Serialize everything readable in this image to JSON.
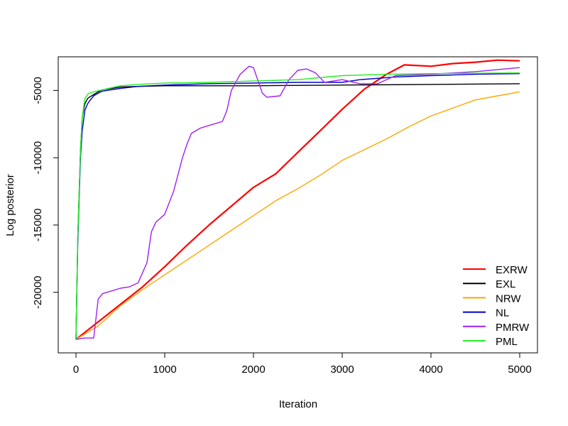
{
  "chart_data": {
    "type": "line",
    "title": "",
    "xlabel": "Iteration",
    "ylabel": "Log posterior",
    "xlim": [
      -200,
      5200
    ],
    "ylim": [
      -24500,
      -2500
    ],
    "x_ticks": [
      0,
      1000,
      2000,
      3000,
      4000,
      5000
    ],
    "y_ticks": [
      -20000,
      -15000,
      -10000,
      -5000
    ],
    "grid": false,
    "legend_position": "bottom-right",
    "series": [
      {
        "name": "EXRW",
        "color": "#ff0000",
        "x": [
          0,
          250,
          500,
          750,
          1000,
          1250,
          1500,
          1750,
          2000,
          2250,
          2500,
          2750,
          3000,
          3250,
          3500,
          3700,
          4000,
          4250,
          4500,
          4750,
          5000
        ],
        "y": [
          -23500,
          -22200,
          -20900,
          -19600,
          -18100,
          -16500,
          -15000,
          -13600,
          -12200,
          -11200,
          -9600,
          -8000,
          -6400,
          -4900,
          -3800,
          -3100,
          -3200,
          -3000,
          -2900,
          -2750,
          -2800
        ]
      },
      {
        "name": "EXL",
        "color": "#000000",
        "x": [
          0,
          20,
          50,
          70,
          100,
          130,
          150,
          200,
          250,
          300,
          400,
          500,
          700,
          1000,
          1500,
          2000,
          3000,
          4000,
          5000
        ],
        "y": [
          -23500,
          -16000,
          -9500,
          -7000,
          -6000,
          -5600,
          -5500,
          -5300,
          -5100,
          -4950,
          -4850,
          -4750,
          -4700,
          -4650,
          -4650,
          -4650,
          -4600,
          -4550,
          -4500
        ]
      },
      {
        "name": "NRW",
        "color": "#ffa500",
        "x": [
          0,
          250,
          500,
          750,
          1000,
          1250,
          1500,
          1750,
          2000,
          2250,
          2500,
          2750,
          3000,
          3250,
          3500,
          3750,
          4000,
          4250,
          4500,
          4750,
          5000
        ],
        "y": [
          -23500,
          -22500,
          -21000,
          -19800,
          -18700,
          -17600,
          -16500,
          -15400,
          -14300,
          -13200,
          -12300,
          -11300,
          -10200,
          -9400,
          -8600,
          -7700,
          -6900,
          -6300,
          -5700,
          -5400,
          -5100
        ]
      },
      {
        "name": "NL",
        "color": "#0000cd",
        "x": [
          0,
          20,
          50,
          70,
          100,
          130,
          150,
          200,
          250,
          300,
          400,
          500,
          700,
          1000,
          1500,
          2000,
          2500,
          3000,
          3200,
          3600,
          4000,
          4500,
          5000
        ],
        "y": [
          -23500,
          -16500,
          -10000,
          -8000,
          -6500,
          -6000,
          -5800,
          -5400,
          -5200,
          -5050,
          -4950,
          -4850,
          -4700,
          -4600,
          -4500,
          -4450,
          -4400,
          -4400,
          -4200,
          -4000,
          -3900,
          -3800,
          -3750
        ]
      },
      {
        "name": "PMRW",
        "color": "#a020f0",
        "x": [
          0,
          100,
          200,
          250,
          300,
          400,
          500,
          600,
          700,
          800,
          850,
          900,
          1000,
          1100,
          1200,
          1250,
          1300,
          1400,
          1450,
          1550,
          1650,
          1700,
          1750,
          1850,
          1950,
          2000,
          2100,
          2150,
          2300,
          2400,
          2500,
          2600,
          2700,
          2800,
          3000,
          3200,
          3400,
          3600,
          4000,
          4500,
          5000
        ],
        "y": [
          -23500,
          -23400,
          -23400,
          -20500,
          -20100,
          -19900,
          -19700,
          -19600,
          -19300,
          -17800,
          -15500,
          -14800,
          -14200,
          -12500,
          -10000,
          -9000,
          -8200,
          -7800,
          -7700,
          -7500,
          -7300,
          -6500,
          -5000,
          -3800,
          -3200,
          -3300,
          -5200,
          -5500,
          -5400,
          -4200,
          -3500,
          -3400,
          -3700,
          -4400,
          -4200,
          -4500,
          -4500,
          -3900,
          -3800,
          -3600,
          -3300
        ]
      },
      {
        "name": "PML",
        "color": "#22ee22",
        "x": [
          0,
          20,
          50,
          70,
          100,
          130,
          150,
          200,
          300,
          400,
          500,
          700,
          1000,
          1500,
          2000,
          2500,
          3000,
          3500,
          4000,
          5000
        ],
        "y": [
          -23500,
          -16000,
          -9500,
          -7000,
          -5600,
          -5300,
          -5200,
          -5100,
          -4950,
          -4800,
          -4650,
          -4550,
          -4450,
          -4400,
          -4300,
          -4200,
          -3900,
          -3800,
          -3750,
          -3700
        ]
      }
    ]
  }
}
